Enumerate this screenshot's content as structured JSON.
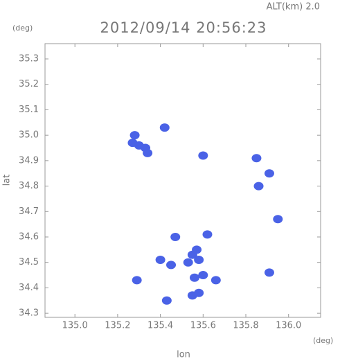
{
  "chart_data": {
    "type": "scatter",
    "title": "2012/09/14 20:56:23",
    "subtitle": "ALT(km) 2.0",
    "y_unit": "(deg)",
    "x_unit": "(deg)",
    "xlabel": "lon",
    "ylabel": "lat",
    "color": "#4a62e6",
    "x": [
      135.28,
      135.3,
      135.33,
      135.34,
      135.27,
      135.42,
      135.6,
      135.85,
      135.91,
      135.86,
      135.95,
      135.55,
      135.57,
      135.53,
      135.58,
      135.62,
      135.47,
      135.56,
      135.6,
      135.66,
      135.55,
      135.58,
      135.45,
      135.4,
      135.29,
      135.43,
      135.91
    ],
    "values": [
      35.0,
      34.96,
      34.95,
      34.93,
      34.97,
      35.03,
      34.92,
      34.91,
      34.85,
      34.8,
      34.67,
      34.53,
      34.55,
      34.5,
      34.51,
      34.61,
      34.6,
      34.44,
      34.45,
      34.43,
      34.37,
      34.38,
      34.49,
      34.51,
      34.43,
      34.35,
      34.46
    ],
    "xlim": [
      134.86,
      136.15
    ],
    "ylim": [
      34.284,
      35.36
    ],
    "xticks": [
      {
        "value": 135.0,
        "label": "135.0"
      },
      135.2,
      135.4,
      135.6,
      135.8,
      {
        "value": 136.0,
        "label": "136.0"
      }
    ],
    "yticks": [
      34.3,
      34.4,
      34.5,
      34.6,
      34.7,
      34.8,
      34.9,
      {
        "value": 35.0,
        "label": "35.0"
      },
      35.1,
      35.2,
      35.3
    ]
  }
}
